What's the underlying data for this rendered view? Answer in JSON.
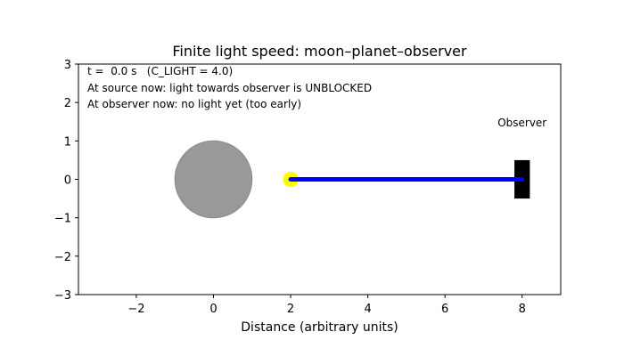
{
  "chart_data": {
    "type": "scatter",
    "title": "Finite light speed: moon–planet–observer",
    "xlabel": "Distance (arbitrary units)",
    "ylabel": "",
    "xlim": [
      -3.5,
      9.0
    ],
    "ylim": [
      -3.0,
      3.0
    ],
    "xticks": [
      -2,
      0,
      2,
      4,
      6,
      8
    ],
    "xtick_labels": [
      "−2",
      "0",
      "2",
      "4",
      "6",
      "8"
    ],
    "yticks": [
      -3,
      -2,
      -1,
      0,
      1,
      2,
      3
    ],
    "ytick_labels": [
      "−3",
      "−2",
      "−1",
      "0",
      "1",
      "2",
      "3"
    ],
    "grid": false,
    "aspect": "equal",
    "annotations": [
      "t =  0.0 s   (C_LIGHT = 4.0)",
      "At source now: light towards observer is UNBLOCKED",
      "At observer now: no light yet (too early)"
    ],
    "objects": {
      "planet": {
        "x": 0.0,
        "y": 0.0,
        "radius": 1.0,
        "color": "#999999"
      },
      "moon": {
        "x": 2.0,
        "y": 0.0,
        "radius": 0.2,
        "color": "#ffff00"
      },
      "light_ray": {
        "x": [
          2.0,
          8.0
        ],
        "y": [
          0.0,
          0.0
        ],
        "color": "#0000ff"
      },
      "observer": {
        "x": 8.0,
        "y": 0.0,
        "width": 0.4,
        "height": 1.0,
        "color": "#000000",
        "label": "Observer"
      }
    }
  }
}
